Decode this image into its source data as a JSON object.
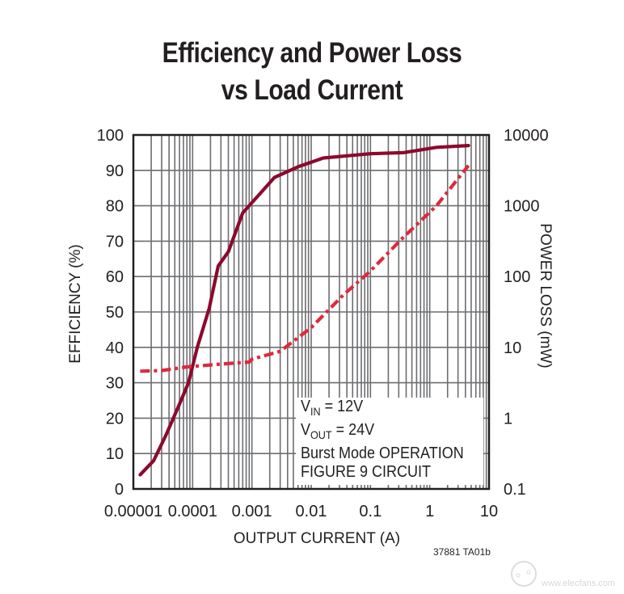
{
  "title_line1": "Efficiency and Power Loss",
  "title_line2": "vs Load Current",
  "inset": {
    "vin_label": "V",
    "vin_sub": "IN",
    "vin_value": " = 12V",
    "vout_label": "V",
    "vout_sub": "OUT",
    "vout_value": " = 24V",
    "mode": "Burst Mode OPERATION",
    "circuit": "FIGURE 9 CIRCUIT"
  },
  "figure_id": "37881 TA01b",
  "watermark": "www.elecfans.com",
  "colors": {
    "efficiency": "#8b0a2e",
    "power_loss": "#e0283c",
    "grid": "#6d6e71",
    "frame": "#231f20"
  },
  "chart_data": {
    "type": "line",
    "title": "Efficiency and Power Loss vs Load Current",
    "xlabel": "OUTPUT CURRENT (A)",
    "ylabel": "EFFICIENCY (%)",
    "y2label": "POWER LOSS (mW)",
    "xscale": "log",
    "xlim": [
      1e-05,
      10
    ],
    "ylim": [
      0,
      100
    ],
    "y2scale": "log",
    "y2lim": [
      0.1,
      10000
    ],
    "grid": true,
    "x_ticks": [
      "0.00001",
      "0.0001",
      "0.001",
      "0.01",
      "0.1",
      "1",
      "10"
    ],
    "y_ticks": [
      "0",
      "10",
      "20",
      "30",
      "40",
      "50",
      "60",
      "70",
      "80",
      "90",
      "100"
    ],
    "y2_ticks": [
      "0.1",
      "1",
      "10",
      "100",
      "1000",
      "10000"
    ],
    "series": [
      {
        "name": "Efficiency",
        "axis": "left",
        "style": "solid",
        "x": [
          1.3e-05,
          2.2e-05,
          3.5e-05,
          6e-05,
          8.5e-05,
          0.00012,
          0.00019,
          0.00027,
          0.0004,
          0.0007,
          0.0013,
          0.0024,
          0.006,
          0.016,
          0.1,
          0.36,
          1.3,
          4.5
        ],
        "values": [
          4,
          8,
          15,
          24,
          30,
          40,
          51,
          63,
          67,
          78,
          83,
          88,
          91,
          93.5,
          94.7,
          95,
          96.5,
          97
        ]
      },
      {
        "name": "Power Loss",
        "axis": "right",
        "style": "dash-dot",
        "x": [
          1.3e-05,
          3e-05,
          8e-05,
          0.0003,
          0.0009,
          0.001,
          0.003,
          0.01,
          0.035,
          0.1,
          0.35,
          1.3,
          4.5
        ],
        "values": [
          4.6,
          4.7,
          5.3,
          5.8,
          6.2,
          6.8,
          8.8,
          19,
          55,
          120,
          350,
          1000,
          3700
        ]
      }
    ]
  }
}
